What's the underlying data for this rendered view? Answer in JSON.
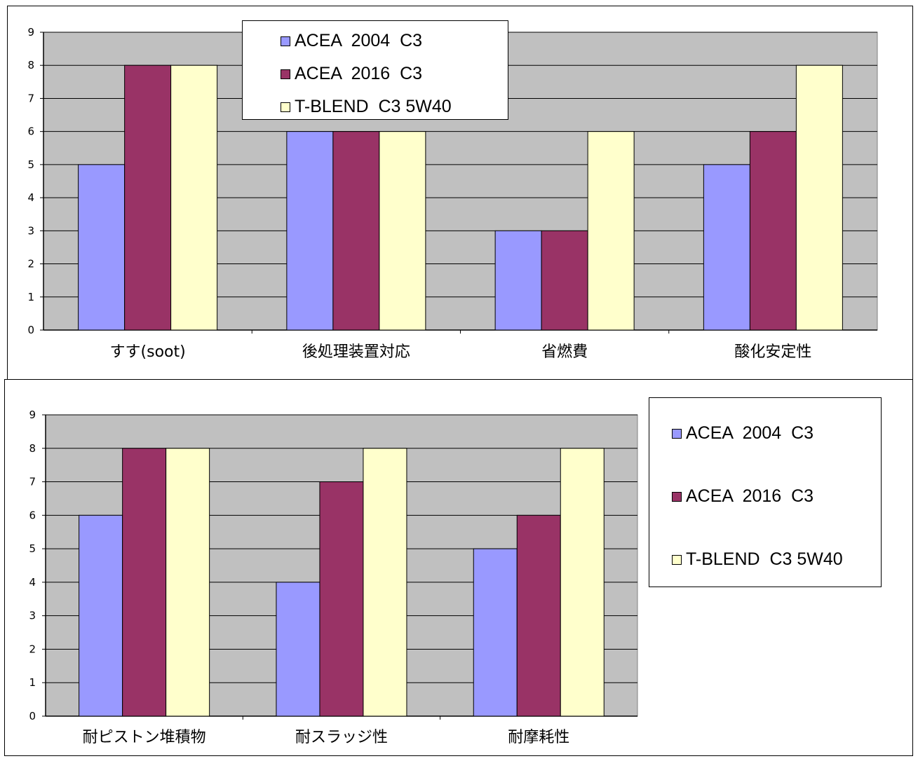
{
  "chart_data": [
    {
      "type": "bar",
      "categories": [
        "すす(soot)",
        "後処理装置対応",
        "省燃費",
        "酸化安定性"
      ],
      "series": [
        {
          "name": "ACEA  2004  C3",
          "values": [
            5,
            6,
            3,
            5
          ]
        },
        {
          "name": "ACEA  2016  C3",
          "values": [
            8,
            6,
            3,
            6
          ]
        },
        {
          "name": "T-BLEND  C3 5W40",
          "values": [
            8,
            6,
            6,
            8
          ]
        }
      ],
      "ylim": [
        0,
        9
      ],
      "yticks": [
        "0",
        "1",
        "2",
        "3",
        "4",
        "5",
        "6",
        "7",
        "8",
        "9"
      ],
      "grid": true,
      "legend": "top-center"
    },
    {
      "type": "bar",
      "categories": [
        "耐ピストン堆積物",
        "耐スラッジ性",
        "耐摩耗性"
      ],
      "series": [
        {
          "name": "ACEA  2004  C3",
          "values": [
            6,
            4,
            5
          ]
        },
        {
          "name": "ACEA  2016  C3",
          "values": [
            8,
            7,
            6
          ]
        },
        {
          "name": "T-BLEND  C3 5W40",
          "values": [
            8,
            8,
            8
          ]
        }
      ],
      "ylim": [
        0,
        9
      ],
      "yticks": [
        "0",
        "1",
        "2",
        "3",
        "4",
        "5",
        "6",
        "7",
        "8",
        "9"
      ],
      "grid": true,
      "legend": "right"
    }
  ],
  "colors": {
    "series": [
      "#9999ff",
      "#993366",
      "#ffffcc"
    ],
    "plot_background": "#c0c0c0",
    "gridline": "#000000"
  }
}
